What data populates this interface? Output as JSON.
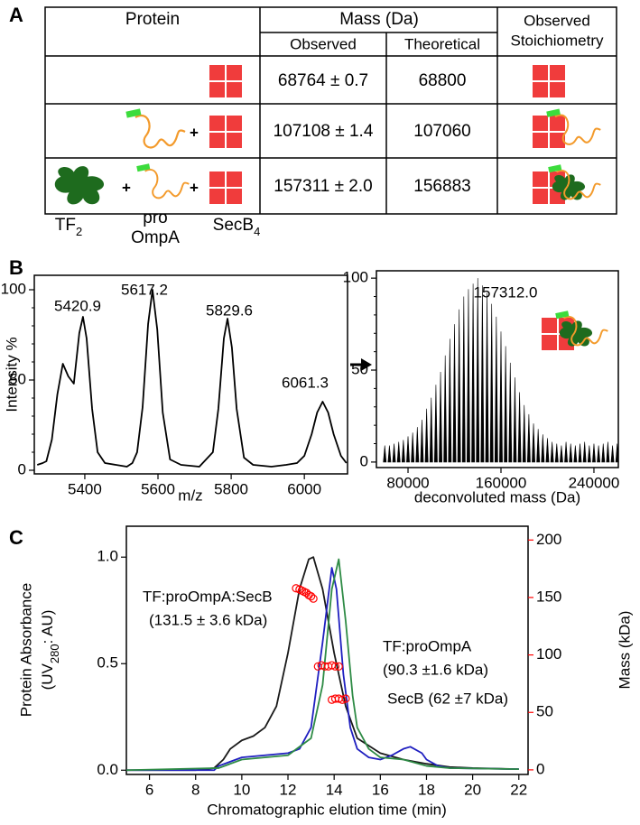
{
  "panels": [
    "A",
    "B",
    "C"
  ],
  "table": {
    "header": {
      "protein": "Protein",
      "mass": "Mass (Da)",
      "observed": "Observed",
      "theoretical": "Theoretical",
      "stoichiometry": [
        "Observed",
        "Stoichiometry"
      ]
    },
    "rows": [
      {
        "observed": "68764 ± 0.7",
        "theoretical": 68800
      },
      {
        "plus": [
          "+"
        ],
        "observed": "107108 ± 1.4",
        "theoretical": 107060
      },
      {
        "plus": [
          "+",
          "+"
        ],
        "observed": "157311 ± 2.0",
        "theoretical": 156883
      }
    ],
    "components": [
      {
        "text": "TF",
        "sub": "2"
      },
      {
        "lines": [
          "pro",
          "OmpA"
        ]
      },
      {
        "text": "SecB",
        "sub": "4"
      }
    ]
  },
  "chart_data": [
    {
      "type": "line",
      "xlabel": "m/z",
      "ylabel": "Intensity %",
      "color": "#000000",
      "x": [
        5270,
        5285,
        5295,
        5310,
        5325,
        5340,
        5355,
        5370,
        5385,
        5395,
        5405,
        5420,
        5435,
        5455,
        5485,
        5515,
        5530,
        5543,
        5558,
        5573,
        5585,
        5598,
        5613,
        5633,
        5663,
        5713,
        5750,
        5765,
        5780,
        5790,
        5802,
        5815,
        5835,
        5860,
        5910,
        5950,
        5980,
        6000,
        6020,
        6035,
        6050,
        6065,
        6080,
        6100,
        6115
      ],
      "values": [
        3,
        4,
        5,
        17,
        42,
        59,
        52,
        48,
        76,
        85,
        73,
        34,
        10,
        4,
        3,
        2,
        4,
        10,
        35,
        81,
        100,
        78,
        32,
        6,
        3,
        2,
        10,
        34,
        73,
        84,
        68,
        34,
        7,
        3,
        2,
        3,
        4,
        8,
        20,
        32,
        38,
        32,
        20,
        8,
        4
      ],
      "xlim": [
        5262,
        6118
      ],
      "ylim": [
        -2,
        108
      ],
      "xticks": [
        5400,
        5600,
        5800,
        6000
      ],
      "yticks": [
        0,
        50,
        100
      ],
      "minor_yticks": [
        10,
        20,
        30,
        40,
        60,
        70,
        80,
        90
      ],
      "annotations": [
        "5420.9",
        "5617.2",
        "5829.6",
        "6061.3"
      ]
    },
    {
      "type": "stem",
      "xlabel": "deconvoluted mass (Da)",
      "color": "#000000",
      "x": [
        60000,
        64000,
        68000,
        72000,
        76000,
        80000,
        84000,
        88000,
        92000,
        96000,
        100000,
        104000,
        108000,
        112000,
        116000,
        120000,
        124000,
        128000,
        132000,
        136000,
        140000,
        144000,
        148000,
        152000,
        156000,
        160000,
        164000,
        168000,
        172000,
        176000,
        180000,
        184000,
        188000,
        192000,
        196000,
        200000,
        204000,
        208000,
        212000,
        216000,
        220000,
        224000,
        228000,
        232000,
        236000,
        240000,
        244000,
        248000,
        252000,
        256000,
        260000
      ],
      "values": [
        9,
        9,
        10,
        11,
        12,
        14,
        16,
        19,
        23,
        29,
        35,
        42,
        49,
        58,
        67,
        75,
        83,
        90,
        94,
        97,
        100,
        96,
        92,
        86,
        79,
        71,
        63,
        54,
        46,
        38,
        31,
        26,
        21,
        18,
        15,
        13,
        11,
        10,
        9,
        11,
        10,
        9,
        10,
        11,
        9,
        10,
        9,
        10,
        11,
        9,
        10
      ],
      "xlim": [
        52800,
        261000
      ],
      "ylim": [
        -3,
        104
      ],
      "xticks": [
        80000,
        160000,
        240000
      ],
      "yticks": [
        0,
        50,
        100
      ],
      "minor_yticks": [
        10,
        20,
        30,
        40,
        60,
        70,
        80,
        90
      ],
      "annotations": [
        "157312.0"
      ]
    },
    {
      "type": "line",
      "xlabel": "Chromatographic elution time (min)",
      "ylabel": "Protein Absorbance",
      "ylabel_unit": {
        "before": "(UV",
        "sub": "280",
        "after": ": AU)"
      },
      "y2label": "Mass (kDa)",
      "y2color": "#ff0000",
      "series": [
        {
          "color": "#1a1a1a",
          "x": [
            5,
            8,
            8.8,
            9.2,
            9.5,
            10,
            10.5,
            11,
            11.5,
            12,
            12.5,
            12.9,
            13.1,
            13.5,
            14,
            14.5,
            15,
            16,
            17,
            18,
            19,
            20,
            22
          ],
          "values": [
            0,
            0,
            0.01,
            0.05,
            0.1,
            0.14,
            0.16,
            0.2,
            0.3,
            0.55,
            0.85,
            0.99,
            1.0,
            0.85,
            0.55,
            0.3,
            0.15,
            0.08,
            0.05,
            0.03,
            0.015,
            0.01,
            0.005
          ]
        },
        {
          "color": "#1f1fc0",
          "x": [
            5,
            8.8,
            9,
            10,
            11,
            12,
            12.5,
            13,
            13.5,
            13.9,
            14.1,
            14.4,
            14.7,
            15,
            15.5,
            16,
            16.5,
            17,
            17.3,
            17.8,
            18,
            18.5,
            19,
            22
          ],
          "values": [
            0,
            0,
            0.02,
            0.06,
            0.07,
            0.08,
            0.1,
            0.2,
            0.6,
            0.95,
            0.85,
            0.45,
            0.2,
            0.1,
            0.06,
            0.05,
            0.07,
            0.1,
            0.11,
            0.08,
            0.05,
            0.02,
            0.01,
            0.005
          ]
        },
        {
          "color": "#2e8b45",
          "x": [
            5,
            9,
            10,
            11,
            12,
            13,
            13.5,
            13.9,
            14.2,
            14.5,
            14.8,
            15,
            15.5,
            16,
            17,
            18,
            19,
            22
          ],
          "values": [
            0,
            0.01,
            0.05,
            0.06,
            0.07,
            0.15,
            0.4,
            0.85,
            0.99,
            0.7,
            0.35,
            0.2,
            0.1,
            0.06,
            0.05,
            0.02,
            0.01,
            0.005
          ]
        },
        {
          "color": "#ff0000",
          "axis": "y2",
          "style": "markers",
          "x": [
            12.35,
            12.5,
            12.6,
            12.7,
            12.8,
            12.9,
            13.0,
            13.1,
            13.3,
            13.45,
            13.6,
            13.75,
            13.9,
            14.05,
            14.2,
            13.9,
            14.05,
            14.2,
            14.35,
            14.5
          ],
          "values": [
            158,
            157,
            156,
            155,
            154,
            152,
            151,
            149,
            90,
            91,
            90,
            90,
            91,
            90,
            90,
            61,
            62,
            62,
            61,
            62
          ]
        }
      ],
      "xlim": [
        5,
        22.4
      ],
      "ylim": [
        -0.02,
        1.145
      ],
      "y2lim": [
        -4,
        212
      ],
      "xticks": [
        6,
        8,
        10,
        12,
        14,
        16,
        18,
        20,
        22
      ],
      "yticks": [
        {
          "value": 0,
          "label": "0.0"
        },
        0.5,
        {
          "value": 1,
          "label": "1.0"
        }
      ],
      "y2ticks": [
        0,
        50,
        100,
        150,
        200
      ],
      "annotations": [
        {
          "lines": [
            "TF:proOmpA:SecB",
            "(131.5 ± 3.6 kDa)"
          ],
          "color": "#1a1a1a"
        },
        {
          "lines": [
            "TF:proOmpA",
            "(90.3 ±1.6 kDa)"
          ],
          "color": "#1f1fc0"
        },
        {
          "lines": [
            "SecB (62 ±7 kDa)"
          ],
          "color": "#2e8b45"
        }
      ]
    }
  ]
}
